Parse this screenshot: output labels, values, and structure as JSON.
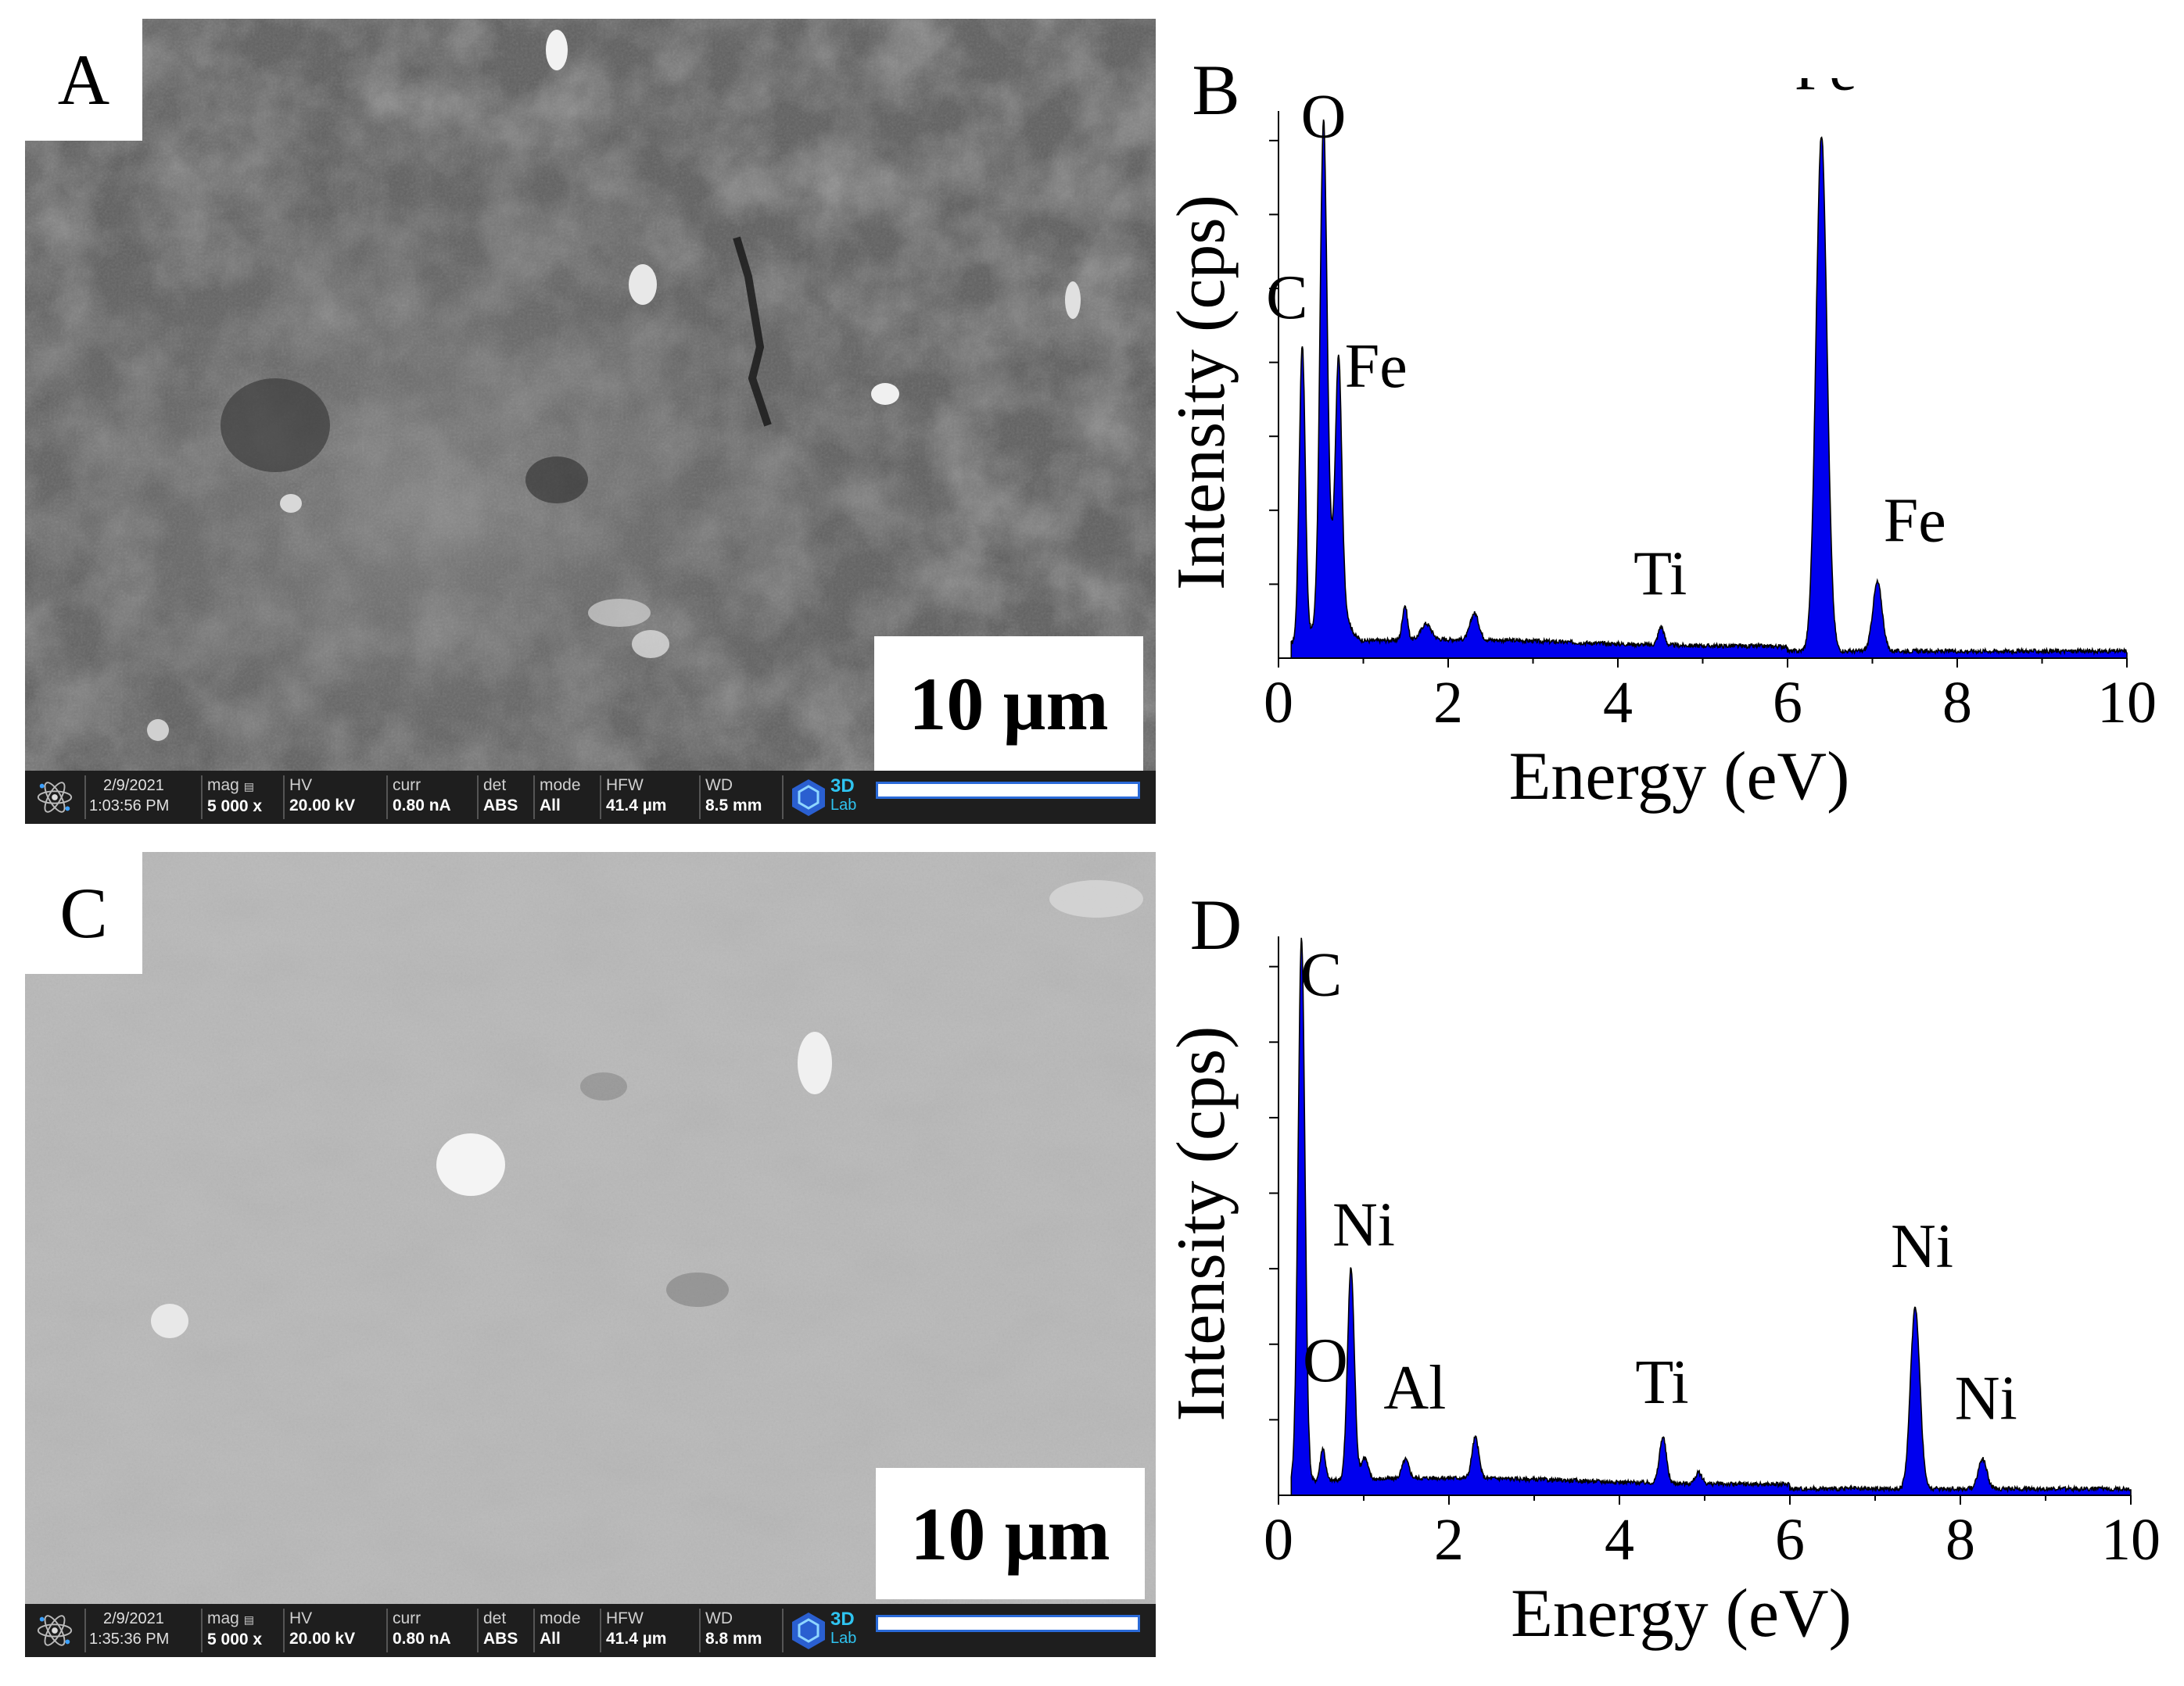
{
  "panels": {
    "A": {
      "letter": "A",
      "scale_label": "10 µm",
      "databar": {
        "date": "2/9/2021",
        "time": "1:03:56 PM",
        "mag_label": "mag",
        "mag_value": "5 000 x",
        "hv_label": "HV",
        "hv_value": "20.00 kV",
        "curr_label": "curr",
        "curr_value": "0.80 nA",
        "det_label": "det",
        "det_value": "ABS",
        "mode_label": "mode",
        "mode_value": "All",
        "hfw_label": "HFW",
        "hfw_value": "41.4 µm",
        "wd_label": "WD",
        "wd_value": "8.5 mm",
        "logo_text_1": "3D",
        "logo_text_2": "Lab"
      }
    },
    "C": {
      "letter": "C",
      "scale_label": "10 µm",
      "databar": {
        "date": "2/9/2021",
        "time": "1:35:36 PM",
        "mag_label": "mag",
        "mag_value": "5 000 x",
        "hv_label": "HV",
        "hv_value": "20.00 kV",
        "curr_label": "curr",
        "curr_value": "0.80 nA",
        "det_label": "det",
        "det_value": "ABS",
        "mode_label": "mode",
        "mode_value": "All",
        "hfw_label": "HFW",
        "hfw_value": "41.4 µm",
        "wd_label": "WD",
        "wd_value": "8.8 mm",
        "logo_text_1": "3D",
        "logo_text_2": "Lab"
      }
    },
    "B": {
      "letter": "B"
    },
    "D": {
      "letter": "D"
    }
  },
  "colors": {
    "spectrum_fill": "#0000ee",
    "spectrum_line": "#000000"
  },
  "chart_data": [
    {
      "panel": "B",
      "type": "area",
      "xlabel": "Energy (eV)",
      "ylabel": "Intensity (cps)",
      "xlim": [
        0,
        10
      ],
      "xticks": [
        0,
        2,
        4,
        6,
        8,
        10
      ],
      "yrange_relative": [
        0,
        1
      ],
      "peaks": [
        {
          "x": 0.28,
          "y": 0.56,
          "w": 0.035
        },
        {
          "x": 0.53,
          "y": 0.87,
          "w": 0.04
        },
        {
          "x": 0.71,
          "y": 0.41,
          "w": 0.035
        },
        {
          "x": 0.63,
          "y": 0.16,
          "w": 0.12
        },
        {
          "x": 1.49,
          "y": 0.065,
          "w": 0.03
        },
        {
          "x": 1.74,
          "y": 0.03,
          "w": 0.06
        },
        {
          "x": 2.31,
          "y": 0.05,
          "w": 0.05
        },
        {
          "x": 4.51,
          "y": 0.035,
          "w": 0.035
        },
        {
          "x": 6.4,
          "y": 0.97,
          "w": 0.065
        },
        {
          "x": 7.06,
          "y": 0.13,
          "w": 0.055
        }
      ],
      "background": 0.022,
      "annotations": [
        {
          "text": "O",
          "x": 0.53,
          "y": 0.98
        },
        {
          "text": "C",
          "x": 0.1,
          "y": 0.64
        },
        {
          "text": "Fe",
          "x": 1.15,
          "y": 0.51
        },
        {
          "text": "Ti",
          "x": 4.5,
          "y": 0.12
        },
        {
          "text": "Fe",
          "x": 6.45,
          "y": 1.07
        },
        {
          "text": "Fe",
          "x": 7.5,
          "y": 0.22
        }
      ]
    },
    {
      "panel": "D",
      "type": "area",
      "xlabel": "Energy (eV)",
      "ylabel": "Intensity (cps)",
      "xlim": [
        0,
        10
      ],
      "xticks": [
        0,
        2,
        4,
        6,
        8,
        10
      ],
      "yrange_relative": [
        0,
        1
      ],
      "peaks": [
        {
          "x": 0.27,
          "y": 1.0,
          "w": 0.04
        },
        {
          "x": 0.52,
          "y": 0.06,
          "w": 0.03
        },
        {
          "x": 0.85,
          "y": 0.39,
          "w": 0.04
        },
        {
          "x": 1.01,
          "y": 0.04,
          "w": 0.04
        },
        {
          "x": 1.49,
          "y": 0.035,
          "w": 0.04
        },
        {
          "x": 2.31,
          "y": 0.075,
          "w": 0.04
        },
        {
          "x": 4.51,
          "y": 0.085,
          "w": 0.04
        },
        {
          "x": 4.93,
          "y": 0.02,
          "w": 0.04
        },
        {
          "x": 7.47,
          "y": 0.335,
          "w": 0.055
        },
        {
          "x": 8.26,
          "y": 0.055,
          "w": 0.05
        }
      ],
      "background": 0.02,
      "annotations": [
        {
          "text": "C",
          "x": 0.5,
          "y": 0.92
        },
        {
          "text": "Ni",
          "x": 1.0,
          "y": 0.46
        },
        {
          "text": "O",
          "x": 0.55,
          "y": 0.21
        },
        {
          "text": "Al",
          "x": 1.6,
          "y": 0.16
        },
        {
          "text": "Ti",
          "x": 4.5,
          "y": 0.17
        },
        {
          "text": "Ni",
          "x": 7.55,
          "y": 0.42
        },
        {
          "text": "Ni",
          "x": 8.3,
          "y": 0.14
        }
      ]
    }
  ]
}
